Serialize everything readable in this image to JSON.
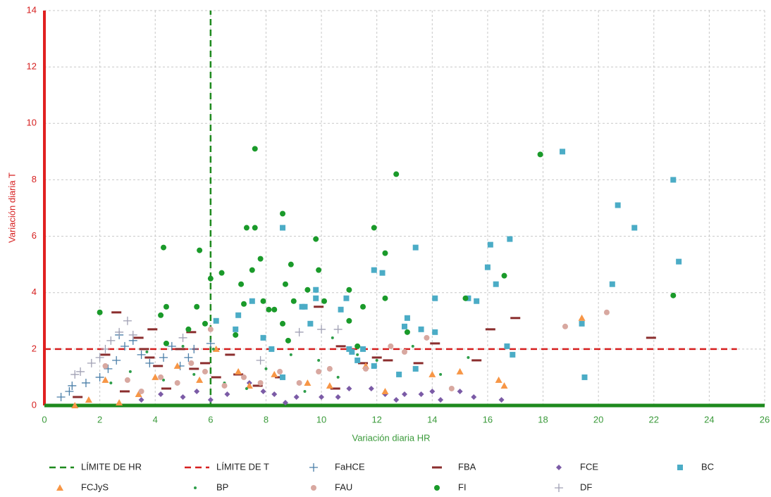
{
  "chart_data": {
    "type": "scatter",
    "x_label": "Variación diaria HR",
    "y_label": "Variación diaria T",
    "xlim": [
      0,
      26
    ],
    "ylim": [
      0,
      14
    ],
    "xticks": [
      0,
      2,
      4,
      6,
      8,
      10,
      12,
      14,
      16,
      18,
      20,
      22,
      24,
      26
    ],
    "yticks": [
      0,
      2,
      4,
      6,
      8,
      10,
      12,
      14
    ],
    "grid": true,
    "legend": "bottom",
    "series": [
      {
        "name": "LÍMITE DE HR",
        "color": "#1e8a1e",
        "marker": "line",
        "x": [
          6,
          6
        ],
        "values": [
          0,
          14
        ]
      },
      {
        "name": "LÍMITE DE T",
        "color": "#d62020",
        "marker": "line",
        "x": [
          0,
          25
        ],
        "values": [
          2,
          2
        ]
      },
      {
        "name": "FaHCE",
        "color": "#4a7ea8",
        "marker": "plus",
        "x": [
          0.6,
          0.9,
          1.0,
          1.5,
          2.0,
          2.3,
          2.6,
          2.7,
          2.9,
          3.2,
          3.5,
          3.8,
          4.3,
          4.6,
          4.9,
          5.2,
          5.4,
          6.0
        ],
        "values": [
          0.3,
          0.5,
          0.7,
          0.8,
          1.0,
          1.3,
          1.6,
          2.5,
          2.1,
          2.3,
          1.8,
          1.5,
          1.7,
          2.1,
          1.4,
          1.7,
          2.0,
          2.2
        ]
      },
      {
        "name": "FBA",
        "color": "#8b2e2e",
        "marker": "dash",
        "x": [
          1.2,
          2.2,
          2.6,
          2.9,
          3.4,
          3.6,
          3.8,
          3.9,
          4.1,
          4.4,
          4.9,
          5.3,
          5.4,
          5.8,
          6.2,
          6.7,
          7.0,
          7.7,
          8.5,
          9.9,
          10.5,
          10.7,
          11.5,
          12.0,
          12.4,
          13.5,
          14.1,
          15.6,
          16.1,
          17.0,
          21.9
        ],
        "values": [
          0.3,
          1.8,
          3.3,
          0.5,
          2.4,
          2.0,
          1.7,
          2.7,
          1.4,
          0.6,
          2.0,
          2.6,
          1.3,
          1.5,
          1.0,
          1.8,
          1.1,
          0.7,
          1.0,
          3.5,
          0.6,
          2.1,
          1.5,
          1.7,
          1.6,
          1.5,
          2.2,
          1.6,
          2.7,
          3.1,
          2.4
        ]
      },
      {
        "name": "FCE",
        "color": "#7b5ba6",
        "marker": "diamond",
        "x": [
          3.5,
          4.2,
          5.0,
          5.5,
          6.0,
          6.6,
          7.4,
          7.9,
          8.3,
          8.7,
          9.1,
          10.0,
          10.6,
          11.0,
          11.8,
          12.3,
          12.7,
          13.0,
          13.6,
          14.0,
          14.3,
          15.0,
          15.5,
          16.5
        ],
        "values": [
          0.2,
          0.4,
          0.3,
          0.5,
          0.2,
          0.4,
          0.8,
          0.5,
          0.4,
          0.1,
          0.3,
          0.3,
          0.3,
          0.6,
          0.6,
          0.4,
          0.2,
          0.4,
          0.4,
          0.5,
          0.2,
          0.5,
          0.3,
          0.2
        ]
      },
      {
        "name": "BC",
        "color": "#4bacc6",
        "marker": "square",
        "x": [
          6.2,
          6.9,
          7.0,
          7.5,
          7.9,
          8.2,
          8.6,
          8.6,
          9.3,
          9.4,
          9.6,
          9.8,
          9.8,
          10.7,
          10.9,
          11.0,
          11.1,
          11.3,
          11.5,
          11.9,
          11.9,
          12.2,
          12.8,
          13.0,
          13.1,
          13.4,
          13.4,
          13.6,
          14.1,
          14.1,
          15.3,
          15.6,
          16.0,
          16.1,
          16.3,
          16.7,
          16.8,
          16.9,
          18.7,
          19.4,
          19.5,
          20.5,
          20.7,
          21.3,
          22.7,
          22.9
        ],
        "values": [
          3.0,
          2.7,
          3.2,
          3.7,
          2.4,
          2.0,
          6.3,
          1.0,
          3.5,
          3.5,
          2.9,
          3.8,
          4.1,
          3.4,
          3.8,
          2.0,
          1.9,
          1.6,
          2.0,
          1.4,
          4.8,
          4.7,
          1.1,
          2.8,
          3.1,
          5.6,
          1.3,
          2.7,
          3.8,
          2.6,
          3.8,
          3.7,
          4.9,
          5.7,
          4.3,
          2.1,
          5.9,
          1.8,
          9.0,
          2.9,
          1.0,
          4.3,
          7.1,
          6.3,
          8.0,
          5.1
        ]
      },
      {
        "name": "FCJyS",
        "color": "#f79646",
        "marker": "triangle",
        "x": [
          1.1,
          1.6,
          2.2,
          2.7,
          3.4,
          4.0,
          4.8,
          5.6,
          6.2,
          7.0,
          7.4,
          8.3,
          9.5,
          10.3,
          11.6,
          12.3,
          14.0,
          15.0,
          16.4,
          16.6,
          19.4
        ],
        "values": [
          0.0,
          0.2,
          0.9,
          0.1,
          0.4,
          1.0,
          1.4,
          0.9,
          2.0,
          1.2,
          0.7,
          1.1,
          0.8,
          0.7,
          1.4,
          0.5,
          1.1,
          1.2,
          0.9,
          0.7,
          3.1
        ]
      },
      {
        "name": "BP",
        "color": "#2e9e4a",
        "marker": "dot",
        "x": [
          2.4,
          3.1,
          3.7,
          4.3,
          5.0,
          5.4,
          6.1,
          6.5,
          7.3,
          8.0,
          8.9,
          9.4,
          9.9,
          10.4,
          10.6,
          11.3,
          12.0,
          13.3,
          14.3,
          15.3
        ],
        "values": [
          0.8,
          1.2,
          1.9,
          0.9,
          2.1,
          1.1,
          2.0,
          0.8,
          0.6,
          1.3,
          1.8,
          0.5,
          1.6,
          2.4,
          1.0,
          1.8,
          1.6,
          2.1,
          1.1,
          1.7
        ]
      },
      {
        "name": "FAU",
        "color": "#d8a8a0",
        "marker": "circle",
        "x": [
          2.2,
          3.0,
          3.5,
          4.2,
          4.8,
          5.3,
          5.8,
          6.0,
          6.5,
          7.2,
          7.8,
          8.5,
          9.2,
          9.9,
          10.3,
          11.6,
          12.5,
          13.0,
          13.8,
          14.7,
          18.8,
          20.3
        ],
        "values": [
          1.4,
          0.9,
          0.5,
          1.0,
          0.8,
          1.5,
          1.2,
          2.7,
          0.7,
          1.0,
          0.8,
          1.2,
          0.8,
          1.2,
          1.3,
          1.3,
          2.1,
          1.9,
          2.4,
          0.6,
          2.8,
          3.3
        ]
      },
      {
        "name": "FI",
        "color": "#1a9a2a",
        "marker": "circle",
        "x": [
          2.0,
          4.3,
          4.4,
          4.2,
          4.4,
          5.2,
          5.5,
          5.6,
          5.8,
          6.0,
          6.4,
          6.9,
          7.1,
          7.2,
          7.3,
          7.6,
          7.6,
          7.5,
          7.8,
          7.9,
          8.1,
          8.3,
          8.6,
          8.6,
          8.7,
          8.8,
          8.9,
          9.0,
          9.5,
          9.8,
          9.9,
          10.1,
          11.0,
          11.0,
          11.3,
          11.5,
          11.9,
          12.3,
          12.3,
          12.7,
          13.1,
          15.2,
          16.6,
          17.9,
          22.7
        ],
        "values": [
          3.3,
          5.6,
          3.5,
          3.2,
          2.2,
          2.7,
          3.5,
          5.5,
          2.9,
          4.5,
          4.7,
          2.5,
          4.3,
          3.6,
          6.3,
          6.3,
          9.1,
          4.8,
          5.2,
          3.7,
          3.4,
          3.4,
          6.8,
          2.9,
          4.3,
          2.3,
          5.0,
          3.7,
          4.1,
          5.9,
          4.8,
          3.7,
          4.1,
          3.0,
          2.1,
          3.5,
          6.3,
          3.8,
          5.4,
          8.2,
          2.6,
          3.8,
          4.6,
          8.9,
          3.9
        ]
      },
      {
        "name": "DF",
        "color": "#a0a0b4",
        "marker": "plus",
        "x": [
          1.1,
          1.3,
          1.7,
          2.0,
          2.2,
          2.4,
          2.7,
          3.0,
          3.2,
          5.0,
          7.8,
          9.2,
          10.0,
          10.6
        ],
        "values": [
          1.1,
          1.2,
          1.5,
          1.7,
          2.0,
          2.3,
          2.6,
          3.0,
          2.5,
          2.4,
          1.6,
          2.6,
          2.7,
          2.7
        ]
      }
    ]
  }
}
